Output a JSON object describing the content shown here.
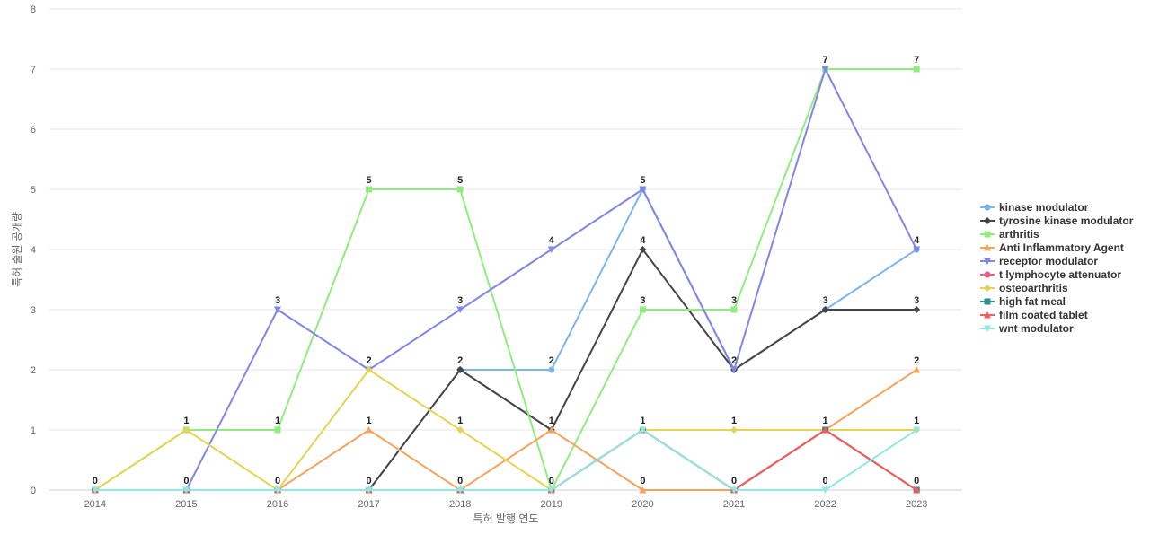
{
  "chart_data": {
    "type": "line",
    "title": "",
    "xlabel": "특허 발행 연도",
    "ylabel": "특허 출원 공개량",
    "ylim": [
      0,
      8
    ],
    "yticks": [
      0,
      1,
      2,
      3,
      4,
      5,
      6,
      7,
      8
    ],
    "grid": true,
    "legend_position": "right",
    "categories": [
      "2014",
      "2015",
      "2016",
      "2017",
      "2018",
      "2019",
      "2020",
      "2021",
      "2022",
      "2023"
    ],
    "series": [
      {
        "name": "kinase modulator",
        "color": "#7cb5ec",
        "marker": "circle",
        "values": [
          0,
          0,
          0,
          0,
          2,
          2,
          5,
          2,
          3,
          4
        ]
      },
      {
        "name": "tyrosine kinase modulator",
        "color": "#434348",
        "marker": "diamond",
        "values": [
          0,
          0,
          0,
          0,
          2,
          1,
          4,
          2,
          3,
          3
        ]
      },
      {
        "name": "arthritis",
        "color": "#90ed7d",
        "marker": "square",
        "values": [
          0,
          1,
          1,
          5,
          5,
          0,
          3,
          3,
          7,
          7
        ]
      },
      {
        "name": "Anti Inflammatory Agent",
        "color": "#f7a35c",
        "marker": "triangle",
        "values": [
          0,
          0,
          0,
          1,
          0,
          1,
          0,
          0,
          1,
          2
        ]
      },
      {
        "name": "receptor modulator",
        "color": "#8085e9",
        "marker": "triangle-down",
        "values": [
          0,
          0,
          3,
          2,
          3,
          4,
          5,
          2,
          7,
          4
        ]
      },
      {
        "name": "t lymphocyte attenuator",
        "color": "#f15c80",
        "marker": "circle",
        "values": [
          0,
          0,
          0,
          0,
          0,
          0,
          1,
          0,
          1,
          0
        ]
      },
      {
        "name": "osteoarthritis",
        "color": "#e4d354",
        "marker": "diamond",
        "values": [
          0,
          1,
          0,
          2,
          1,
          0,
          1,
          1,
          1,
          1
        ]
      },
      {
        "name": "high fat meal",
        "color": "#2b908f",
        "marker": "square",
        "values": [
          0,
          0,
          0,
          0,
          0,
          0,
          1,
          0,
          1,
          0
        ]
      },
      {
        "name": "film coated tablet",
        "color": "#f45b5b",
        "marker": "triangle",
        "values": [
          0,
          0,
          0,
          0,
          0,
          0,
          1,
          0,
          1,
          0
        ]
      },
      {
        "name": "wnt modulator",
        "color": "#91e8e1",
        "marker": "triangle-down",
        "values": [
          0,
          0,
          0,
          0,
          0,
          0,
          1,
          0,
          0,
          1
        ]
      }
    ],
    "data_labels": [
      {
        "x": "2014",
        "value": 0
      },
      {
        "x": "2015",
        "value": 1
      },
      {
        "x": "2015",
        "value": 0
      },
      {
        "x": "2016",
        "value": 3
      },
      {
        "x": "2016",
        "value": 1
      },
      {
        "x": "2016",
        "value": 0
      },
      {
        "x": "2017",
        "value": 5
      },
      {
        "x": "2017",
        "value": 2
      },
      {
        "x": "2017",
        "value": 1
      },
      {
        "x": "2017",
        "value": 0
      },
      {
        "x": "2018",
        "value": 5
      },
      {
        "x": "2018",
        "value": 3
      },
      {
        "x": "2018",
        "value": 2
      },
      {
        "x": "2018",
        "value": 1
      },
      {
        "x": "2018",
        "value": 0
      },
      {
        "x": "2019",
        "value": 4
      },
      {
        "x": "2019",
        "value": 2
      },
      {
        "x": "2019",
        "value": 1
      },
      {
        "x": "2019",
        "value": 0
      },
      {
        "x": "2020",
        "value": 5
      },
      {
        "x": "2020",
        "value": 4
      },
      {
        "x": "2020",
        "value": 3
      },
      {
        "x": "2020",
        "value": 1
      },
      {
        "x": "2020",
        "value": 0
      },
      {
        "x": "2021",
        "value": 3
      },
      {
        "x": "2021",
        "value": 2
      },
      {
        "x": "2021",
        "value": 1
      },
      {
        "x": "2021",
        "value": 0
      },
      {
        "x": "2022",
        "value": 7
      },
      {
        "x": "2022",
        "value": 3
      },
      {
        "x": "2022",
        "value": 1
      },
      {
        "x": "2022",
        "value": 0
      },
      {
        "x": "2023",
        "value": 7
      },
      {
        "x": "2023",
        "value": 4
      },
      {
        "x": "2023",
        "value": 3
      },
      {
        "x": "2023",
        "value": 2
      },
      {
        "x": "2023",
        "value": 1
      },
      {
        "x": "2023",
        "value": 0
      }
    ]
  }
}
